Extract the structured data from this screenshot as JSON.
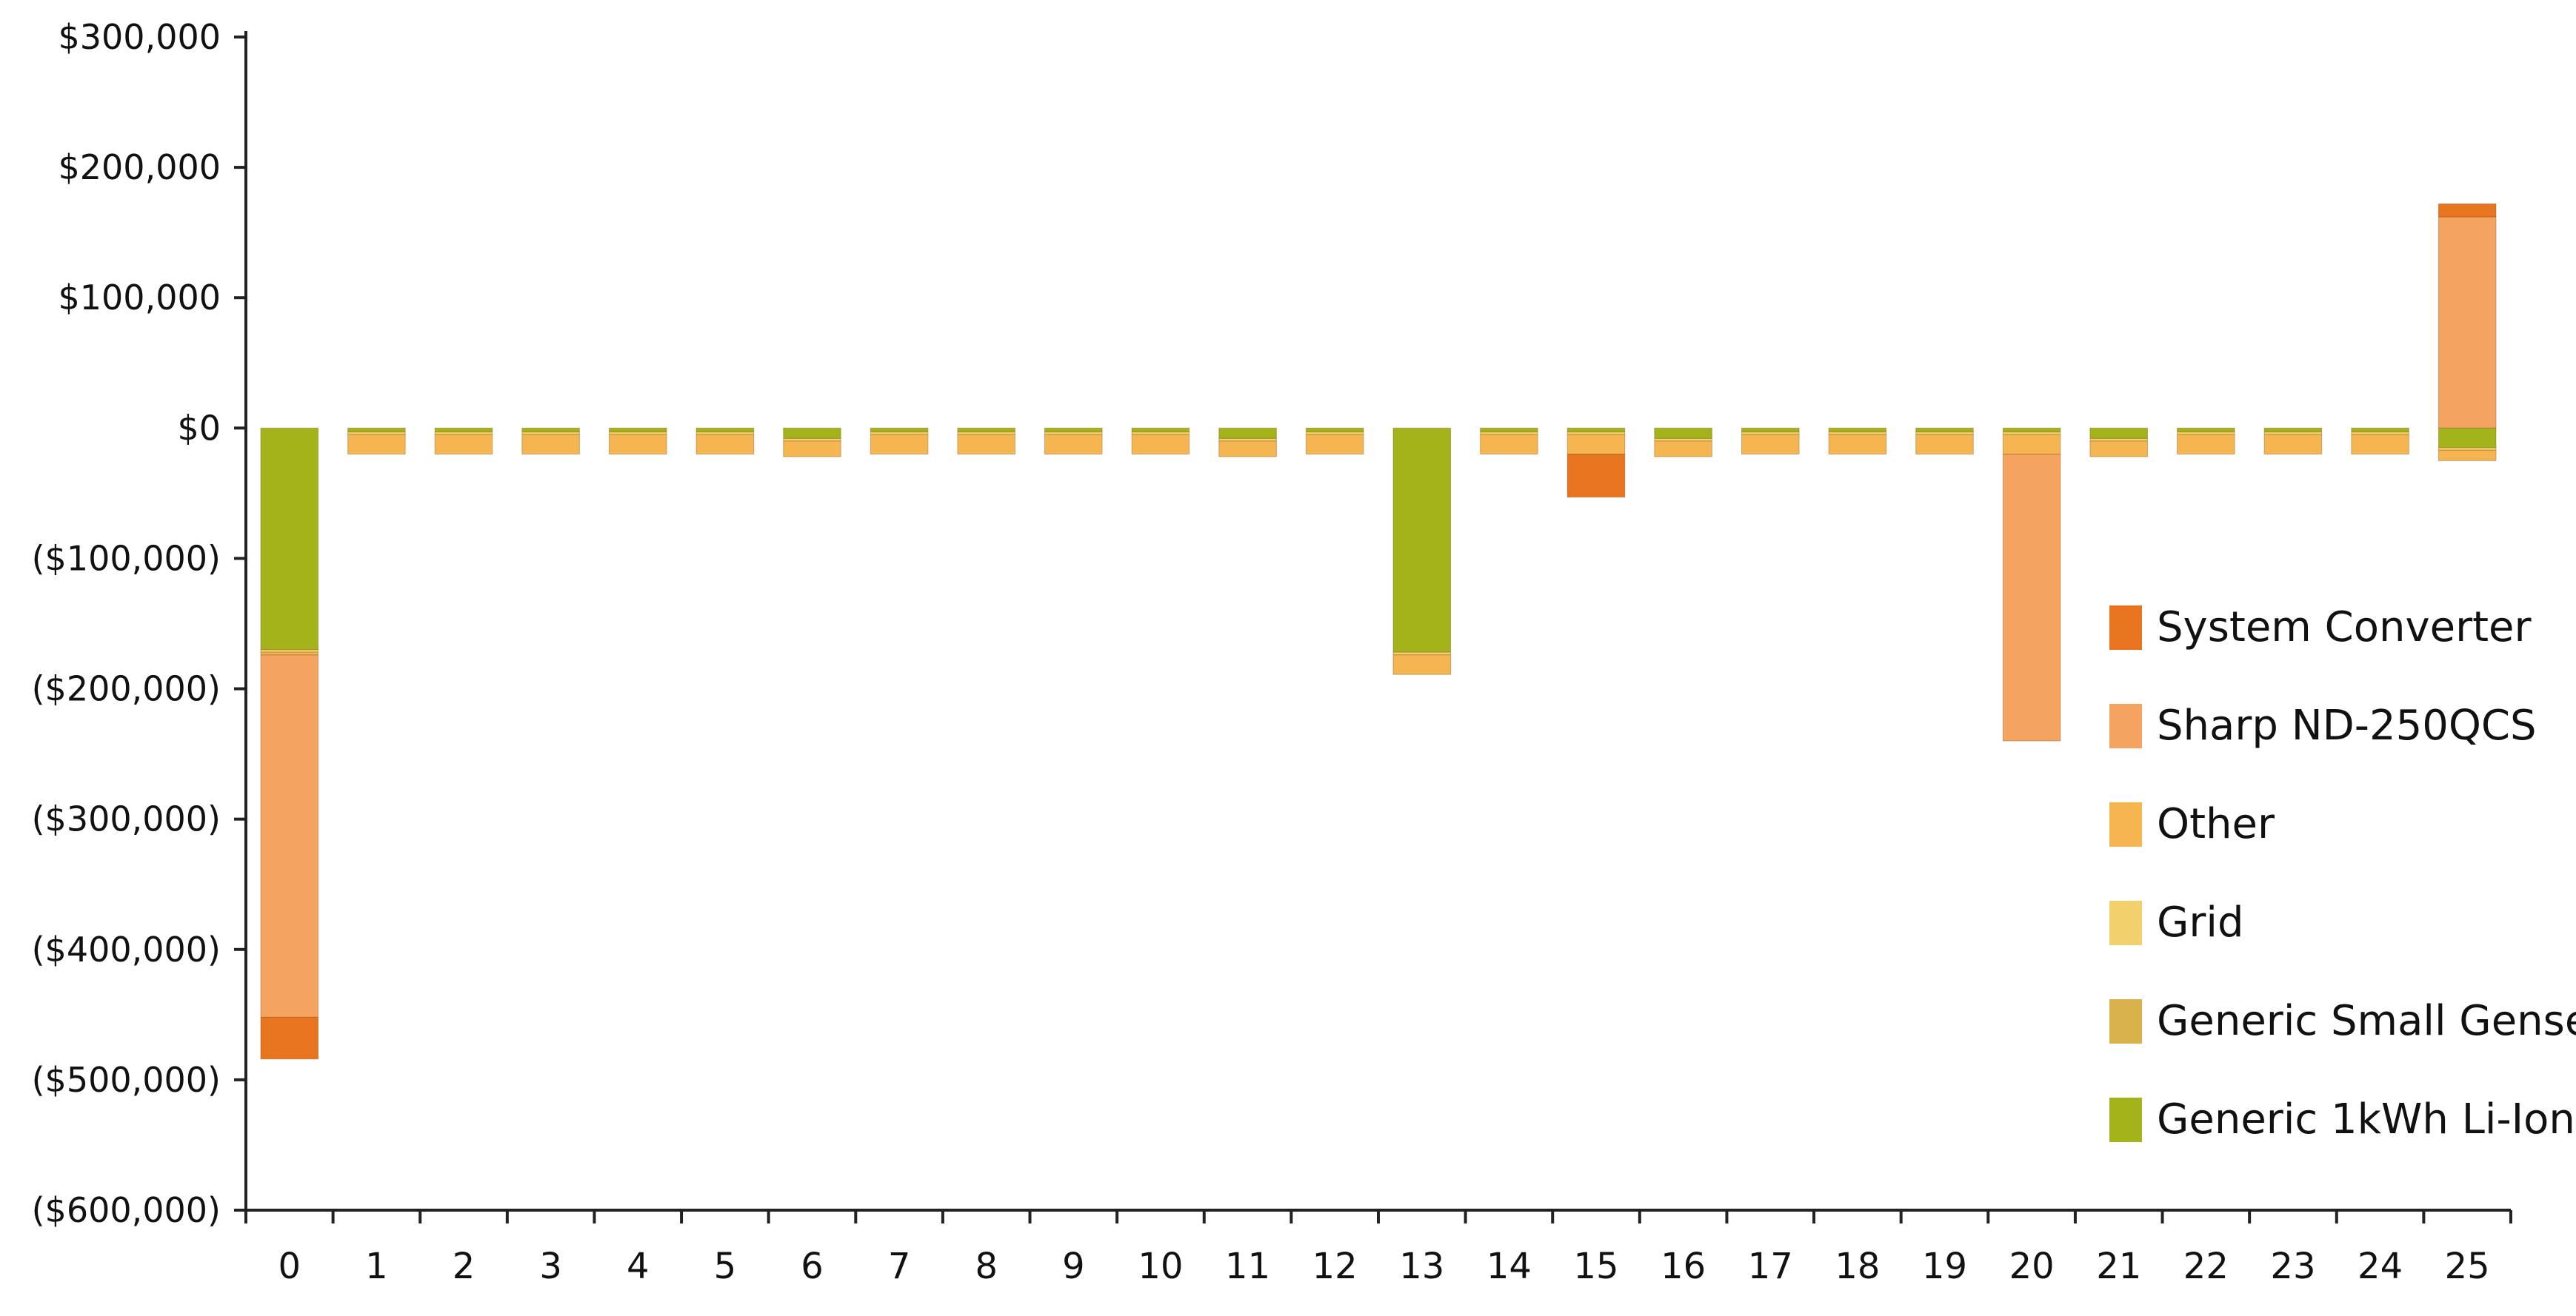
{
  "chart_data": {
    "type": "bar",
    "stacked": true,
    "title": "",
    "xlabel": "",
    "ylabel": "",
    "ylim": [
      -600000,
      300000
    ],
    "yticks": [
      300000,
      200000,
      100000,
      0,
      -100000,
      -200000,
      -300000,
      -400000,
      -500000,
      -600000
    ],
    "ytick_labels": [
      "$300,000",
      "$200,000",
      "$100,000",
      "$0",
      "($100,000)",
      "($200,000)",
      "($300,000)",
      "($400,000)",
      "($500,000)",
      "($600,000)"
    ],
    "categories": [
      "0",
      "1",
      "2",
      "3",
      "4",
      "5",
      "6",
      "7",
      "8",
      "9",
      "10",
      "11",
      "12",
      "13",
      "14",
      "15",
      "16",
      "17",
      "18",
      "19",
      "20",
      "21",
      "22",
      "23",
      "24",
      "25"
    ],
    "legend_position": "right",
    "series": [
      {
        "name": "Generic 1kWh Li-Ion",
        "color": "#A3B31A",
        "values": [
          -170000,
          -3000,
          -3000,
          -3000,
          -3000,
          -3000,
          -8000,
          -3000,
          -3000,
          -3000,
          -3000,
          -8000,
          -3000,
          -172000,
          -3000,
          -3000,
          -8000,
          -3000,
          -3000,
          -3000,
          -3000,
          -8000,
          -3000,
          -3000,
          -3000,
          -15000
        ]
      },
      {
        "name": "Generic Small Genset",
        "color": "#D9B24C",
        "values": [
          0,
          0,
          0,
          0,
          0,
          0,
          0,
          0,
          0,
          0,
          0,
          0,
          0,
          0,
          0,
          0,
          0,
          0,
          0,
          0,
          0,
          0,
          0,
          0,
          0,
          0
        ]
      },
      {
        "name": "Grid",
        "color": "#F2D06B",
        "values": [
          -2000,
          -2000,
          -2000,
          -2000,
          -2000,
          -2000,
          -2000,
          -2000,
          -2000,
          -2000,
          -2000,
          -2000,
          -2000,
          -2000,
          -2000,
          -2000,
          -2000,
          -2000,
          -2000,
          -2000,
          -2000,
          -2000,
          -2000,
          -2000,
          -2000,
          -2000
        ]
      },
      {
        "name": "Other",
        "color": "#F5B651",
        "values": [
          -2000,
          -15000,
          -15000,
          -15000,
          -15000,
          -15000,
          -12000,
          -15000,
          -15000,
          -15000,
          -15000,
          -12000,
          -15000,
          -15000,
          -15000,
          -15000,
          -12000,
          -15000,
          -15000,
          -15000,
          -15000,
          -12000,
          -15000,
          -15000,
          -15000,
          -8000
        ]
      },
      {
        "name": "Sharp ND-250QCS",
        "color": "#F4A460",
        "values": [
          -278000,
          0,
          0,
          0,
          0,
          0,
          0,
          0,
          0,
          0,
          0,
          0,
          0,
          0,
          0,
          0,
          0,
          0,
          0,
          0,
          -220000,
          0,
          0,
          0,
          0,
          162000
        ]
      },
      {
        "name": "System Converter",
        "color": "#E8741F",
        "values": [
          -32000,
          0,
          0,
          0,
          0,
          0,
          0,
          0,
          0,
          0,
          0,
          0,
          0,
          0,
          0,
          -33000,
          0,
          0,
          0,
          0,
          0,
          0,
          0,
          0,
          0,
          10000
        ]
      }
    ],
    "legend_order": [
      "System Converter",
      "Sharp ND-250QCS",
      "Other",
      "Grid",
      "Generic Small Genset",
      "Generic 1kWh Li-Ion"
    ]
  }
}
